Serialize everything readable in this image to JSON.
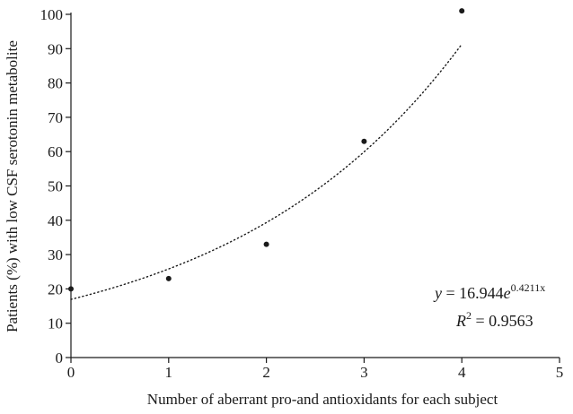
{
  "chart_data": {
    "type": "scatter",
    "xlabel": "Number of aberrant pro-and antioxidants for each subject",
    "ylabel": "Patients (%) with low CSF serotonin metabolite",
    "xlim": [
      0,
      5
    ],
    "ylim": [
      0,
      100
    ],
    "x_ticks": [
      "0",
      "1",
      "2",
      "3",
      "4",
      "5"
    ],
    "y_ticks": [
      "0",
      "10",
      "20",
      "30",
      "40",
      "50",
      "60",
      "70",
      "80",
      "90",
      "100"
    ],
    "grid": false,
    "series": [
      {
        "points": [
          {
            "x": 0,
            "y": 20
          },
          {
            "x": 1,
            "y": 23
          },
          {
            "x": 2,
            "y": 33
          },
          {
            "x": 3,
            "y": 63
          },
          {
            "x": 4,
            "y": 101
          }
        ]
      }
    ],
    "trendline": {
      "type": "exponential",
      "a": 16.944,
      "b": 0.4211,
      "range": [
        0,
        4
      ],
      "equation": {
        "lhs": "y",
        "rel": " = 16.944",
        "base": "e",
        "exponent": "0.4211x"
      },
      "r_squared": {
        "lhs": "R",
        "power": "2",
        "value": " = 0.9563"
      }
    }
  }
}
